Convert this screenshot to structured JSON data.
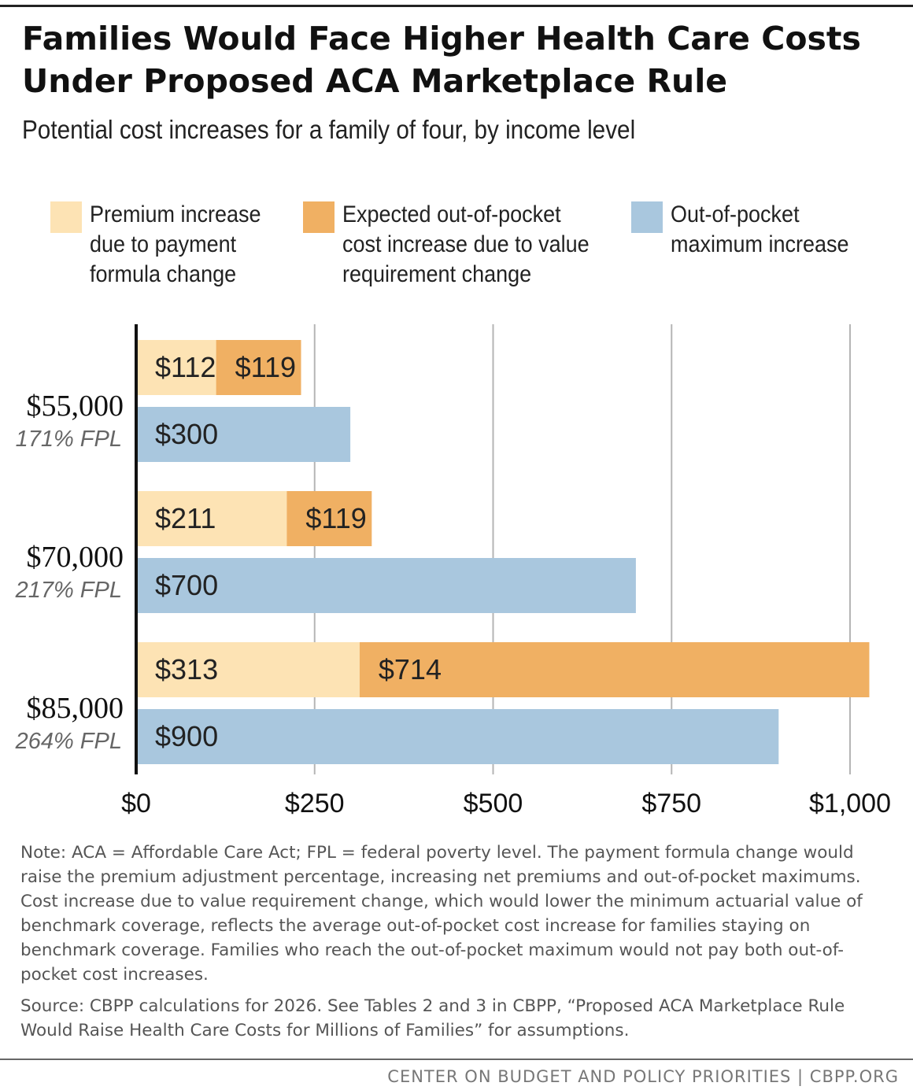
{
  "title": "Families Would Face Higher Health Care Costs Under Proposed ACA Marketplace Rule",
  "subtitle": "Potential cost increases for a family of four, by income level",
  "legend": [
    {
      "label": "Premium increase\ndue to payment\nformula change",
      "color": "#fde3b4"
    },
    {
      "label": "Expected out-of-pocket\ncost increase due to value\nrequirement change",
      "color": "#f0b063"
    },
    {
      "label": "Out-of-pocket\nmaximum increase",
      "color": "#a9c7de"
    }
  ],
  "chart_data": {
    "type": "bar",
    "orientation": "horizontal",
    "title": "Families Would Face Higher Health Care Costs Under Proposed ACA Marketplace Rule",
    "subtitle": "Potential cost increases for a family of four, by income level",
    "categories": [
      {
        "label": "$55,000",
        "sublabel": "171% FPL"
      },
      {
        "label": "$70,000",
        "sublabel": "217% FPL"
      },
      {
        "label": "$85,000",
        "sublabel": "264% FPL"
      }
    ],
    "series": [
      {
        "name": "Premium increase due to payment formula change",
        "stack": "premium-and-expected",
        "color": "#fde3b4",
        "values": [
          112,
          211,
          313
        ],
        "labels": [
          "$112",
          "$211",
          "$313"
        ]
      },
      {
        "name": "Expected out-of-pocket cost increase due to value requirement change",
        "stack": "premium-and-expected",
        "color": "#f0b063",
        "values": [
          119,
          119,
          714
        ],
        "labels": [
          "$119",
          "$119",
          "$714"
        ]
      },
      {
        "name": "Out-of-pocket maximum increase",
        "stack": "oop-max",
        "color": "#a9c7de",
        "values": [
          300,
          700,
          900
        ],
        "labels": [
          "$300",
          "$700",
          "$900"
        ]
      }
    ],
    "xlim": [
      0,
      1000
    ],
    "ticks": [
      {
        "value": 0,
        "label": "$0"
      },
      {
        "value": 250,
        "label": "$250"
      },
      {
        "value": 500,
        "label": "$500"
      },
      {
        "value": 750,
        "label": "$750"
      },
      {
        "value": 1000,
        "label": "$1,000"
      }
    ],
    "grid": true,
    "legend_position": "top"
  },
  "note": "Note: ACA = Affordable Care Act; FPL = federal poverty level. The payment formula change would raise the premium adjustment percentage, increasing net premiums and out-of-pocket maximums. Cost increase due to value requirement change, which would lower the minimum actuarial value of benchmark coverage, reflects the average out-of-pocket cost increase for families staying on benchmark coverage. Families who reach the out-of-pocket maximum would not pay both out-of-pocket cost increases.",
  "source": "Source: CBPP calculations for 2026. See Tables 2 and 3 in CBPP, “Proposed ACA Marketplace Rule Would Raise Health Care Costs for Millions of Families” for assumptions.",
  "footer": "CENTER ON BUDGET AND POLICY PRIORITIES | CBPP.ORG"
}
